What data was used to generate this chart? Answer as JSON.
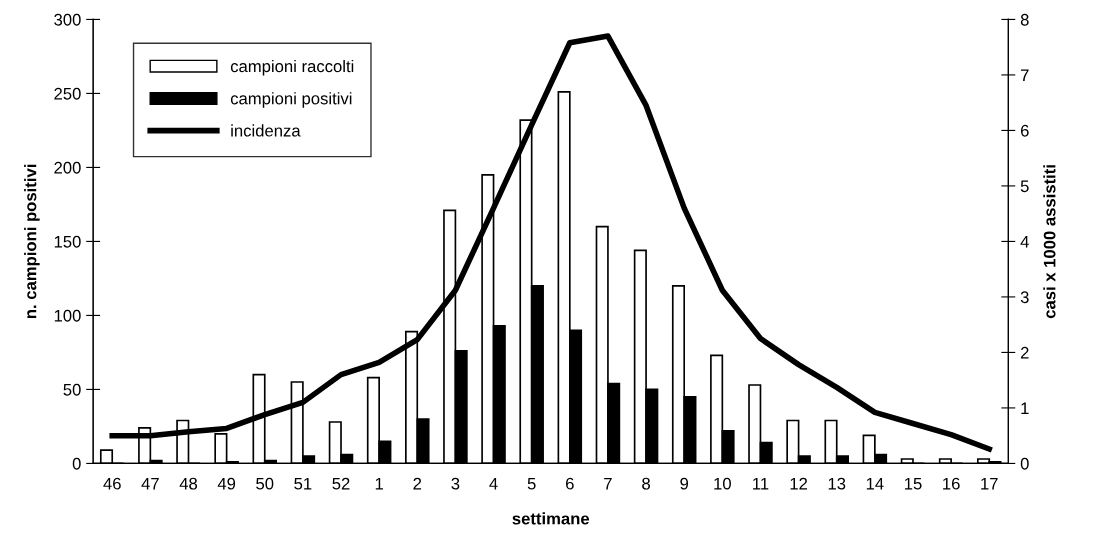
{
  "chart_data": {
    "type": "bar",
    "xlabel": "settimane",
    "ylabel": "n. campioni positivi",
    "y2label": "casi x 1000 assistiti",
    "categories": [
      "46",
      "47",
      "48",
      "49",
      "50",
      "51",
      "52",
      "1",
      "2",
      "3",
      "4",
      "5",
      "6",
      "7",
      "8",
      "9",
      "10",
      "11",
      "12",
      "13",
      "14",
      "15",
      "16",
      "17"
    ],
    "series": [
      {
        "name": "campioni raccolti",
        "color": "#ffffff",
        "values": [
          9,
          24,
          29,
          20,
          60,
          55,
          28,
          58,
          89,
          171,
          195,
          232,
          251,
          160,
          144,
          120,
          73,
          53,
          29,
          29,
          19,
          3,
          3,
          3
        ]
      },
      {
        "name": "campioni positivi",
        "color": "#000000",
        "values": [
          0,
          2,
          0,
          1,
          2,
          5,
          6,
          15,
          30,
          76,
          93,
          120,
          90,
          54,
          50,
          45,
          22,
          14,
          5,
          5,
          6,
          0,
          0,
          1
        ]
      },
      {
        "name": "incidenza",
        "type": "line",
        "axis": "y2",
        "color": "#000000",
        "values": [
          0.5,
          0.5,
          0.57,
          0.63,
          0.88,
          1.1,
          1.6,
          1.82,
          2.23,
          3.12,
          4.6,
          6.1,
          7.58,
          7.7,
          6.45,
          4.6,
          3.12,
          2.25,
          1.78,
          1.37,
          0.92,
          0.72,
          0.52,
          0.26
        ]
      }
    ],
    "ylim": [
      0,
      300
    ],
    "yticks": [
      0,
      50,
      100,
      150,
      200,
      250,
      300
    ],
    "y2lim": [
      0,
      8
    ],
    "y2ticks": [
      0,
      1,
      2,
      3,
      4,
      5,
      6,
      7,
      8
    ],
    "grid": false,
    "legend": "top left",
    "marker": "none",
    "line_style": "solid"
  }
}
